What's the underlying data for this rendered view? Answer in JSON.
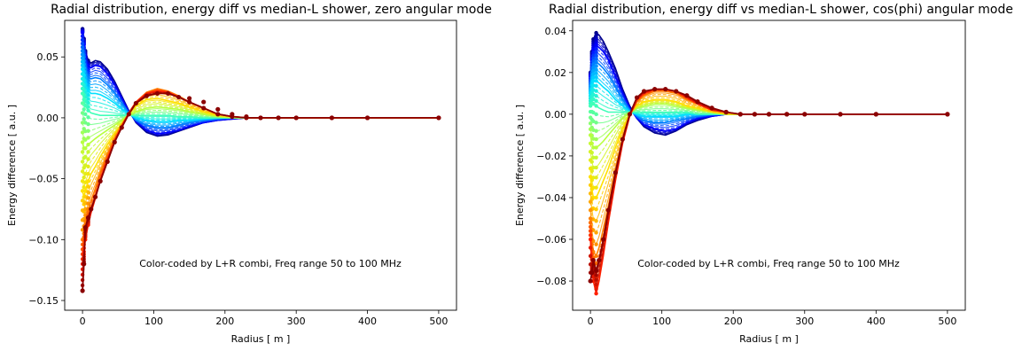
{
  "chart_data": [
    {
      "type": "line",
      "title": "Radial distribution, energy diff vs median-L shower, zero angular mode",
      "xlabel": "Radius [ m ]",
      "ylabel": "Energy difference [ a.u. ]",
      "xlim": [
        -25,
        525
      ],
      "ylim": [
        -0.158,
        0.08
      ],
      "xticks": [
        0,
        100,
        200,
        300,
        400,
        500
      ],
      "yticks": [
        -0.15,
        -0.1,
        -0.05,
        0.0,
        0.05
      ],
      "ytick_labels": [
        "−0.15",
        "−0.10",
        "−0.05",
        "0.00",
        "0.05"
      ],
      "annotation": "Color-coded by L+R combi, Freq range 50 to 100 MHz",
      "colormap": "jet",
      "x": [
        0,
        2,
        4,
        8,
        12,
        18,
        25,
        35,
        45,
        55,
        65,
        75,
        90,
        105,
        120,
        135,
        150,
        170,
        190,
        210,
        230,
        250,
        275,
        300,
        350,
        400,
        500
      ],
      "envelope_series": [
        {
          "name": "",
          "color": "#00008b",
          "values": [
            0.073,
            0.065,
            0.055,
            0.047,
            0.045,
            0.047,
            0.046,
            0.04,
            0.03,
            0.018,
            0.006,
            -0.004,
            -0.012,
            -0.015,
            -0.014,
            -0.011,
            -0.008,
            -0.004,
            -0.002,
            -0.001,
            0,
            0,
            0,
            0,
            0,
            0,
            0
          ]
        },
        {
          "name": "",
          "color": "#0000ff",
          "values": [
            0.07,
            0.06,
            0.05,
            0.042,
            0.041,
            0.043,
            0.042,
            0.036,
            0.027,
            0.016,
            0.005,
            -0.003,
            -0.01,
            -0.013,
            -0.012,
            -0.01,
            -0.007,
            -0.004,
            -0.002,
            -0.001,
            0,
            0,
            0,
            0,
            0,
            0,
            0
          ]
        },
        {
          "name": "",
          "color": "#0080ff",
          "values": [
            0.055,
            0.05,
            0.04,
            0.033,
            0.032,
            0.033,
            0.032,
            0.027,
            0.02,
            0.012,
            0.004,
            -0.002,
            -0.006,
            -0.008,
            -0.008,
            -0.006,
            -0.004,
            -0.002,
            -0.001,
            0,
            0,
            0,
            0,
            0,
            0,
            0,
            0
          ]
        },
        {
          "name": "",
          "color": "#00e0ff",
          "values": [
            0.04,
            0.035,
            0.028,
            0.022,
            0.02,
            0.02,
            0.019,
            0.016,
            0.012,
            0.007,
            0.003,
            0,
            -0.002,
            -0.003,
            -0.003,
            -0.002,
            -0.002,
            -0.001,
            0,
            0,
            0,
            0,
            0,
            0,
            0,
            0,
            0
          ]
        },
        {
          "name": "",
          "color": "#40ffb8",
          "values": [
            0.02,
            0.015,
            0.01,
            0.006,
            0.004,
            0.003,
            0.002,
            0.002,
            0.002,
            0.002,
            0.002,
            0.002,
            0.002,
            0.002,
            0.002,
            0.001,
            0.001,
            0,
            0,
            0,
            0,
            0,
            0,
            0,
            0,
            0,
            0
          ]
        },
        {
          "name": "",
          "color": "#b8ff40",
          "values": [
            -0.02,
            -0.025,
            -0.025,
            -0.022,
            -0.02,
            -0.017,
            -0.014,
            -0.01,
            -0.006,
            -0.002,
            0.002,
            0.005,
            0.008,
            0.009,
            0.008,
            0.007,
            0.005,
            0.003,
            0.001,
            0,
            0,
            0,
            0,
            0,
            0,
            0,
            0
          ]
        },
        {
          "name": "",
          "color": "#ffe000",
          "values": [
            -0.06,
            -0.065,
            -0.06,
            -0.052,
            -0.046,
            -0.04,
            -0.032,
            -0.022,
            -0.013,
            -0.005,
            0.003,
            0.01,
            0.015,
            0.016,
            0.014,
            0.012,
            0.009,
            0.005,
            0.002,
            0.001,
            0,
            0,
            0,
            0,
            0,
            0,
            0
          ]
        },
        {
          "name": "",
          "color": "#ff8000",
          "values": [
            -0.1,
            -0.095,
            -0.085,
            -0.075,
            -0.068,
            -0.058,
            -0.045,
            -0.03,
            -0.017,
            -0.006,
            0.004,
            0.013,
            0.021,
            0.024,
            0.022,
            0.018,
            0.013,
            0.008,
            0.003,
            0.001,
            0,
            0,
            0,
            0,
            0,
            0,
            0
          ]
        },
        {
          "name": "",
          "color": "#ff2000",
          "values": [
            -0.12,
            -0.11,
            -0.1,
            -0.088,
            -0.078,
            -0.066,
            -0.051,
            -0.034,
            -0.019,
            -0.007,
            0.004,
            0.013,
            0.02,
            0.022,
            0.021,
            0.017,
            0.013,
            0.008,
            0.003,
            0.001,
            0,
            0,
            0,
            0,
            0,
            0,
            0
          ]
        },
        {
          "name": "",
          "color": "#8b0000",
          "values": [
            -0.142,
            -0.12,
            -0.09,
            -0.082,
            -0.075,
            -0.065,
            -0.052,
            -0.036,
            -0.02,
            -0.008,
            0.003,
            0.012,
            0.018,
            0.02,
            0.02,
            0.017,
            0.013,
            0.008,
            0.003,
            0.001,
            0,
            0,
            0,
            0,
            0,
            0,
            0
          ]
        }
      ],
      "marker_x": [
        150,
        170,
        190,
        210,
        230,
        250,
        275,
        300,
        350,
        400,
        500
      ],
      "marker_values": [
        0.016,
        0.013,
        0.007,
        0.003,
        0.001,
        0,
        0,
        0,
        0,
        0,
        0
      ]
    },
    {
      "type": "line",
      "title": "Radial distribution, energy diff vs median-L shower, cos(phi) angular mode",
      "xlabel": "Radius [ m ]",
      "ylabel": "Energy difference [ a.u. ]",
      "xlim": [
        -25,
        525
      ],
      "ylim": [
        -0.094,
        0.045
      ],
      "xticks": [
        0,
        100,
        200,
        300,
        400,
        500
      ],
      "yticks": [
        -0.08,
        -0.06,
        -0.04,
        -0.02,
        0.0,
        0.02,
        0.04
      ],
      "ytick_labels": [
        "−0.08",
        "−0.06",
        "−0.04",
        "−0.02",
        "0.00",
        "0.02",
        "0.04"
      ],
      "annotation": "Color-coded by L+R combi, Freq range 50 to 100 MHz",
      "colormap": "jet",
      "x": [
        0,
        2,
        4,
        8,
        12,
        18,
        25,
        35,
        45,
        55,
        65,
        75,
        90,
        105,
        120,
        135,
        150,
        170,
        190,
        210,
        230,
        250,
        275,
        300,
        350,
        400,
        500
      ],
      "envelope_series": [
        {
          "name": "",
          "color": "#00008b",
          "values": [
            0.02,
            0.03,
            0.036,
            0.039,
            0.038,
            0.035,
            0.03,
            0.022,
            0.012,
            0.004,
            -0.002,
            -0.006,
            -0.009,
            -0.01,
            -0.008,
            -0.005,
            -0.003,
            -0.001,
            0,
            0,
            0,
            0,
            0,
            0,
            0,
            0,
            0
          ]
        },
        {
          "name": "",
          "color": "#0000ff",
          "values": [
            0.018,
            0.026,
            0.031,
            0.033,
            0.032,
            0.03,
            0.026,
            0.018,
            0.01,
            0.003,
            -0.002,
            -0.005,
            -0.007,
            -0.008,
            -0.007,
            -0.004,
            -0.002,
            -0.001,
            0,
            0,
            0,
            0,
            0,
            0,
            0,
            0,
            0
          ]
        },
        {
          "name": "",
          "color": "#0080ff",
          "values": [
            0.014,
            0.02,
            0.024,
            0.025,
            0.024,
            0.022,
            0.019,
            0.013,
            0.007,
            0.002,
            -0.001,
            -0.003,
            -0.004,
            -0.004,
            -0.003,
            -0.002,
            -0.001,
            0,
            0,
            0,
            0,
            0,
            0,
            0,
            0,
            0,
            0
          ]
        },
        {
          "name": "",
          "color": "#00e0ff",
          "values": [
            0.01,
            0.014,
            0.016,
            0.016,
            0.015,
            0.013,
            0.011,
            0.007,
            0.004,
            0.001,
            0,
            -0.001,
            -0.001,
            -0.001,
            -0.001,
            0,
            0,
            0,
            0,
            0,
            0,
            0,
            0,
            0,
            0,
            0,
            0
          ]
        },
        {
          "name": "",
          "color": "#40ffb8",
          "values": [
            0.004,
            0.005,
            0.005,
            0.004,
            0.003,
            0.002,
            0.001,
            0.001,
            0.001,
            0.001,
            0.001,
            0.001,
            0.001,
            0.001,
            0.001,
            0.001,
            0,
            0,
            0,
            0,
            0,
            0,
            0,
            0,
            0,
            0,
            0
          ]
        },
        {
          "name": "",
          "color": "#b8ff40",
          "values": [
            -0.01,
            -0.014,
            -0.016,
            -0.016,
            -0.015,
            -0.013,
            -0.01,
            -0.006,
            -0.002,
            0.001,
            0.003,
            0.004,
            0.005,
            0.005,
            0.004,
            0.003,
            0.002,
            0.001,
            0,
            0,
            0,
            0,
            0,
            0,
            0,
            0,
            0
          ]
        },
        {
          "name": "",
          "color": "#ffe000",
          "values": [
            -0.03,
            -0.036,
            -0.04,
            -0.04,
            -0.037,
            -0.032,
            -0.026,
            -0.016,
            -0.007,
            0,
            0.004,
            0.006,
            0.007,
            0.007,
            0.006,
            0.004,
            0.003,
            0.001,
            0,
            0,
            0,
            0,
            0,
            0,
            0,
            0,
            0
          ]
        },
        {
          "name": "",
          "color": "#ff8000",
          "values": [
            -0.05,
            -0.06,
            -0.066,
            -0.068,
            -0.064,
            -0.055,
            -0.044,
            -0.027,
            -0.012,
            0,
            0.006,
            0.009,
            0.011,
            0.011,
            0.01,
            0.007,
            0.005,
            0.002,
            0.001,
            0,
            0,
            0,
            0,
            0,
            0,
            0,
            0
          ]
        },
        {
          "name": "",
          "color": "#ff2000",
          "values": [
            -0.06,
            -0.072,
            -0.08,
            -0.086,
            -0.08,
            -0.068,
            -0.052,
            -0.032,
            -0.014,
            -0.001,
            0.007,
            0.01,
            0.012,
            0.012,
            0.011,
            0.008,
            0.005,
            0.002,
            0.001,
            0,
            0,
            0,
            0,
            0,
            0,
            0,
            0
          ]
        },
        {
          "name": "",
          "color": "#8b0000",
          "values": [
            -0.08,
            -0.076,
            -0.07,
            -0.075,
            -0.07,
            -0.06,
            -0.046,
            -0.028,
            -0.012,
            0,
            0.008,
            0.011,
            0.012,
            0.012,
            0.011,
            0.009,
            0.006,
            0.003,
            0.001,
            0,
            0,
            0,
            0,
            0,
            0,
            0,
            0
          ]
        }
      ],
      "marker_x": [
        150,
        170,
        190,
        210,
        230,
        250,
        275,
        300,
        350,
        400,
        500
      ],
      "marker_values": [
        0.006,
        0.003,
        0.001,
        0,
        0,
        0,
        0,
        0,
        0,
        0,
        0
      ]
    }
  ]
}
